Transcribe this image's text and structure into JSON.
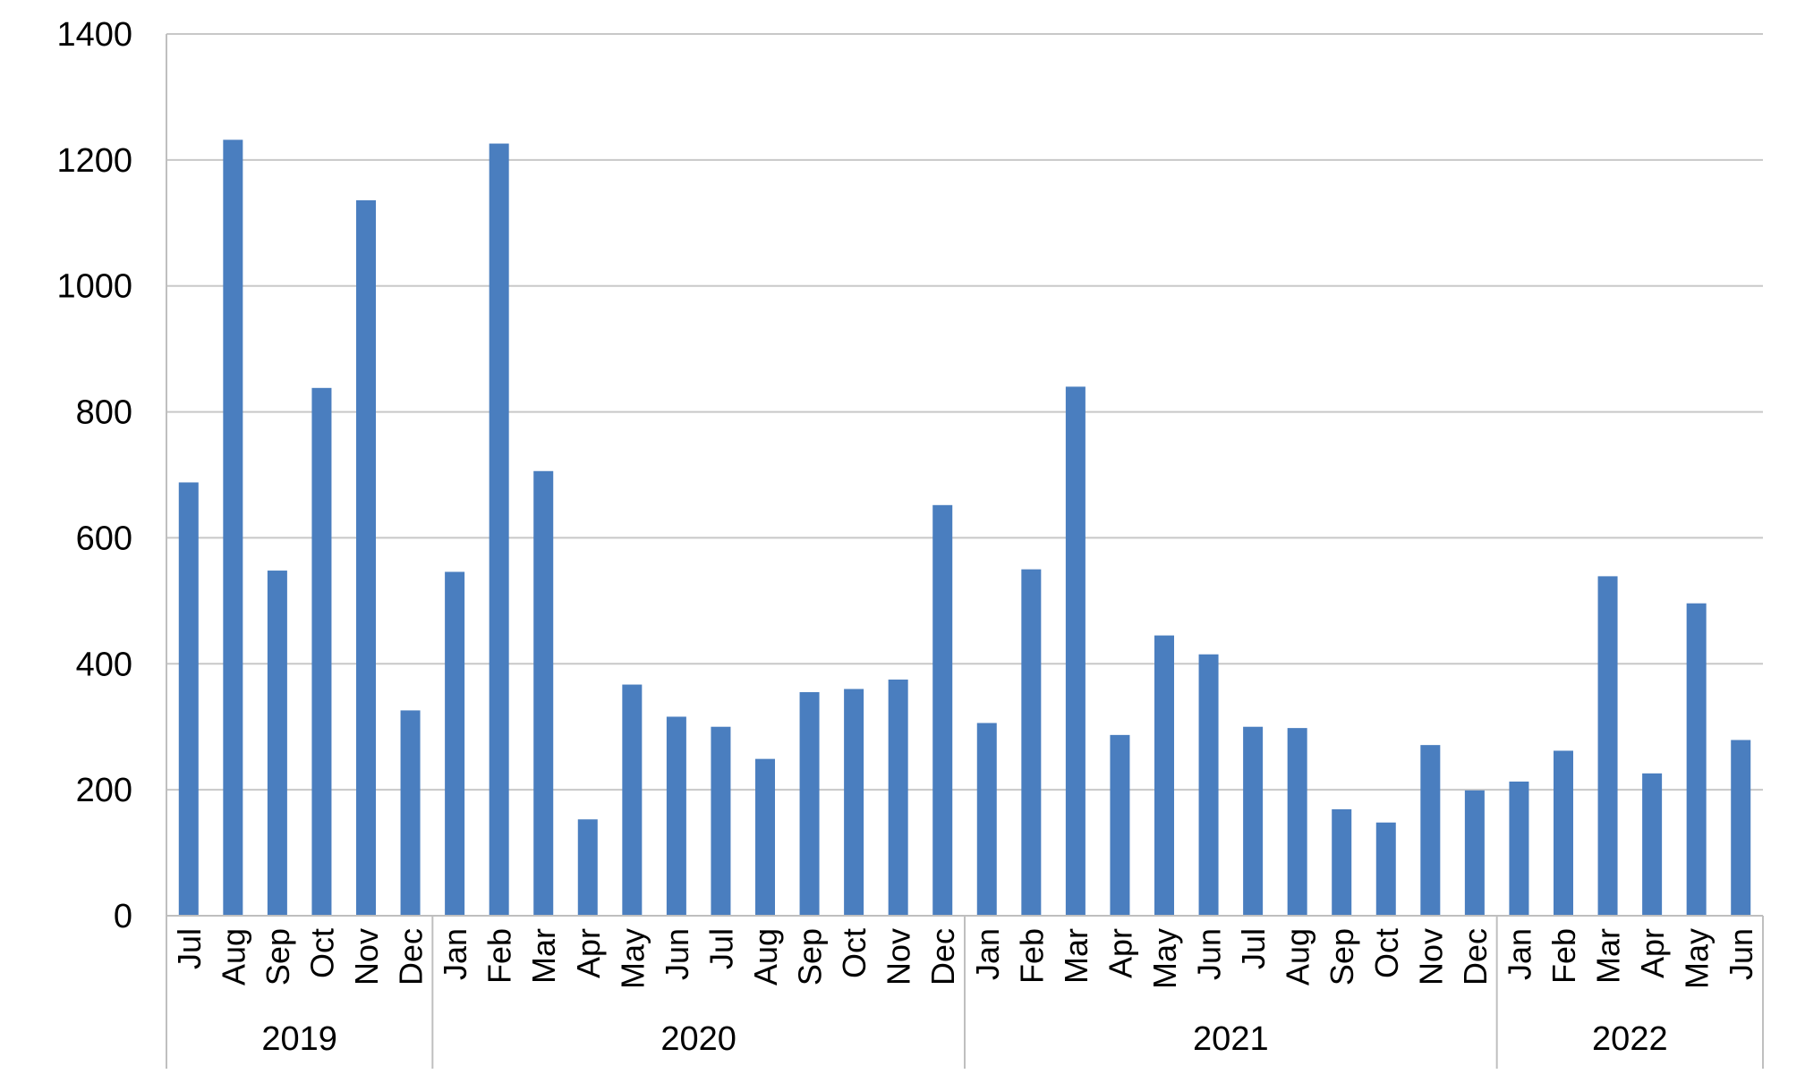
{
  "chart_data": {
    "type": "bar",
    "title": "",
    "xlabel": "",
    "ylabel": "",
    "ylim": [
      0,
      1400
    ],
    "yticks": [
      0,
      200,
      400,
      600,
      800,
      1000,
      1200,
      1400
    ],
    "grid": true,
    "legend": "none",
    "bar_color": "#4a7ebf",
    "categories": [
      "Jul",
      "Aug",
      "Sep",
      "Oct",
      "Nov",
      "Dec",
      "Jan",
      "Feb",
      "Mar",
      "Apr",
      "May",
      "Jun",
      "Jul",
      "Aug",
      "Sep",
      "Oct",
      "Nov",
      "Dec",
      "Jan",
      "Feb",
      "Mar",
      "Apr",
      "May",
      "Jun",
      "Jul",
      "Aug",
      "Sep",
      "Oct",
      "Nov",
      "Dec",
      "Jan",
      "Feb",
      "Mar",
      "Apr",
      "May",
      "Jun"
    ],
    "groups": [
      {
        "label": "2019",
        "count": 6
      },
      {
        "label": "2020",
        "count": 12
      },
      {
        "label": "2021",
        "count": 12
      },
      {
        "label": "2022",
        "count": 6
      }
    ],
    "values": [
      688,
      1232,
      548,
      838,
      1136,
      326,
      546,
      1226,
      706,
      153,
      367,
      316,
      300,
      249,
      355,
      360,
      375,
      652,
      306,
      550,
      840,
      287,
      445,
      415,
      300,
      298,
      169,
      148,
      271,
      199,
      213,
      262,
      539,
      226,
      496,
      279
    ]
  }
}
